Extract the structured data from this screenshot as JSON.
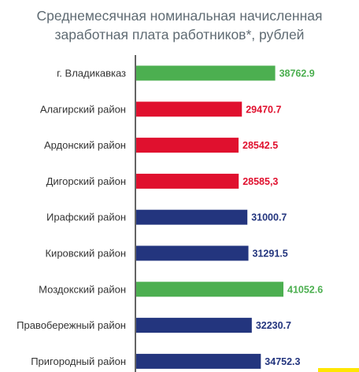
{
  "title_lines": [
    "Среднемесячная номинальная начисленная",
    "заработная  плата  работников*, рублей"
  ],
  "chart_data": {
    "type": "bar",
    "orientation": "horizontal",
    "categories": [
      "г. Владикавказ",
      "Алагирский район",
      "Ардонский район",
      "Дигорский район",
      "Ирафский район",
      "Кировский район",
      "Моздокский район",
      "Правобережный район",
      "Пригородный район"
    ],
    "values": [
      38762.9,
      29470.7,
      28542.5,
      28585.3,
      31000.7,
      31291.5,
      41052.6,
      32230.7,
      34752.3
    ],
    "value_labels": [
      "38762.9",
      "29470.7",
      "28542.5",
      "28585,3",
      "31000.7",
      "31291.5",
      "41052.6",
      "32230.7",
      "34752.3"
    ],
    "bar_colors": [
      "#4caf50",
      "#e0102e",
      "#e0102e",
      "#e0102e",
      "#23357e",
      "#23357e",
      "#4caf50",
      "#23357e",
      "#23357e"
    ],
    "xlim": [
      0,
      41052.6
    ],
    "grid": false,
    "legend": "none"
  }
}
